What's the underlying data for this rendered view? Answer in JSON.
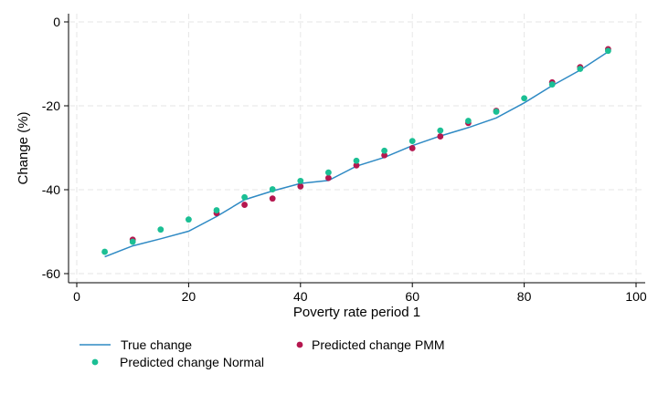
{
  "chart_data": {
    "type": "line",
    "title": "",
    "xlabel": "Poverty rate period 1",
    "ylabel": "Change (%)",
    "xlim": [
      0,
      100
    ],
    "ylim": [
      -60,
      0
    ],
    "xticks": [
      0,
      20,
      40,
      60,
      80,
      100
    ],
    "yticks": [
      0,
      -20,
      -40,
      -60
    ],
    "xtick_labels": [
      "0",
      "20",
      "40",
      "60",
      "80",
      "100"
    ],
    "ytick_labels": [
      "0",
      "-20",
      "-40",
      "-60"
    ],
    "grid": true,
    "legend_position": "bottom",
    "series": [
      {
        "name": "True change",
        "kind": "line",
        "color": "#2f8ac4",
        "x": [
          5,
          10,
          15,
          20,
          25,
          30,
          35,
          40,
          45,
          50,
          55,
          60,
          65,
          70,
          75,
          80,
          85,
          90,
          95
        ],
        "y": [
          -56,
          -53.4,
          -51.7,
          -49.9,
          -46.4,
          -42.4,
          -40.3,
          -38.5,
          -37.8,
          -34.4,
          -32.3,
          -29.5,
          -27.2,
          -25.2,
          -22.9,
          -19.3,
          -15.2,
          -11.5,
          -7.1
        ]
      },
      {
        "name": "Predicted change PMM",
        "kind": "scatter",
        "color": "#b5174f",
        "x": [
          10,
          25,
          30,
          35,
          40,
          45,
          50,
          55,
          60,
          65,
          70,
          75,
          85,
          90,
          95
        ],
        "y": [
          -51.9,
          -45.6,
          -43.6,
          -42.1,
          -39.2,
          -37.2,
          -34.2,
          -31.8,
          -30.1,
          -27.3,
          -24.1,
          -21.2,
          -14.4,
          -10.8,
          -6.5
        ]
      },
      {
        "name": "Predicted change Normal",
        "kind": "scatter",
        "color": "#1bbf94",
        "x": [
          5,
          10,
          15,
          20,
          25,
          30,
          35,
          40,
          45,
          50,
          55,
          60,
          65,
          70,
          75,
          80,
          85,
          90,
          95
        ],
        "y": [
          -54.8,
          -52.4,
          -49.5,
          -47.1,
          -44.9,
          -41.8,
          -39.9,
          -37.9,
          -35.9,
          -33.1,
          -30.7,
          -28.4,
          -25.9,
          -23.6,
          -21.4,
          -18.2,
          -14.9,
          -11.2,
          -6.9
        ]
      }
    ]
  }
}
